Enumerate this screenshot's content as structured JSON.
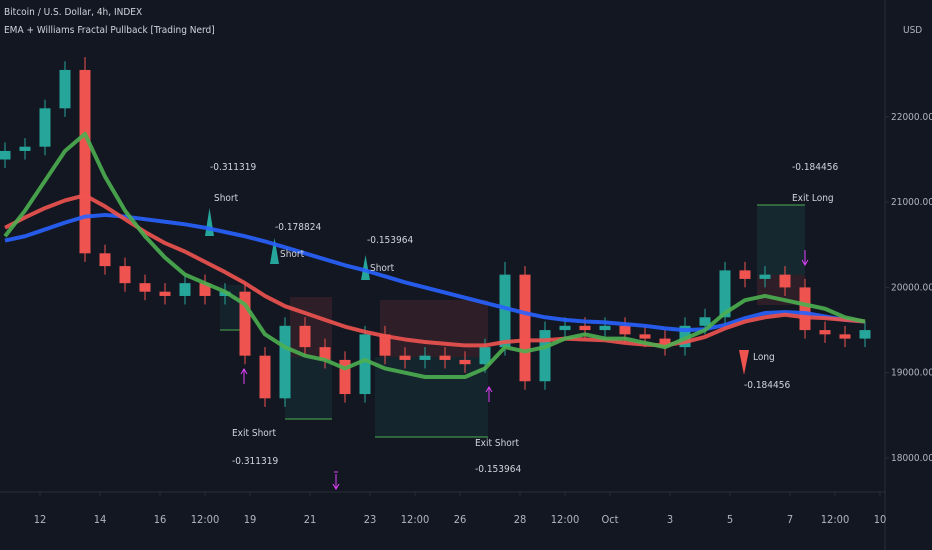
{
  "chart_data": {
    "type": "candlestick",
    "title": "Bitcoin / U.S. Dollar, 4h, INDEX",
    "subtitle": "EMA + Williams Fractal Pullback [Trading Nerd]",
    "y_axis_label": "USD",
    "x": [
      1,
      5,
      9,
      13,
      17,
      21,
      25,
      29,
      33,
      37,
      41,
      45,
      49,
      53,
      57,
      61,
      65,
      69,
      73,
      77,
      81,
      85,
      89,
      93,
      97,
      101,
      105,
      109,
      113,
      117,
      121,
      125,
      129,
      133,
      137,
      141,
      145,
      149,
      153,
      157,
      161,
      165,
      169,
      173
    ],
    "open": [
      21500,
      21600,
      21650,
      22100,
      22550,
      20400,
      20250,
      20050,
      19950,
      19900,
      20050,
      19900,
      19950,
      19200,
      18700,
      19550,
      19300,
      19150,
      18750,
      19450,
      19200,
      19150,
      19200,
      19150,
      19100,
      19300,
      20150,
      18900,
      19500,
      19550,
      19500,
      19550,
      19450,
      19400,
      19300,
      19550,
      19650,
      20200,
      20100,
      20150,
      20000,
      19500,
      19450,
      19400
    ],
    "high": [
      21700,
      21750,
      22200,
      22650,
      22700,
      20500,
      20350,
      20150,
      20050,
      20150,
      20150,
      20050,
      20050,
      19300,
      19650,
      19650,
      19400,
      19250,
      19550,
      19550,
      19300,
      19300,
      19300,
      19250,
      19400,
      20300,
      20250,
      19600,
      19650,
      19650,
      19650,
      19650,
      19550,
      19500,
      19650,
      19750,
      20300,
      20300,
      20250,
      20250,
      20100,
      19600,
      19550,
      19600
    ],
    "low": [
      21400,
      21500,
      21550,
      22000,
      20300,
      20150,
      19950,
      19850,
      19800,
      19800,
      19800,
      19800,
      19100,
      18600,
      18600,
      19200,
      19050,
      18650,
      18650,
      19100,
      19050,
      19050,
      19050,
      19000,
      19000,
      19200,
      18800,
      18800,
      19400,
      19400,
      19400,
      19350,
      19300,
      19200,
      19200,
      19450,
      19550,
      20000,
      20000,
      19900,
      19400,
      19350,
      19300,
      19300
    ],
    "close": [
      21600,
      21650,
      22100,
      22550,
      20400,
      20250,
      20050,
      19950,
      19900,
      20050,
      19900,
      19950,
      19200,
      18700,
      19550,
      19300,
      19150,
      18750,
      19450,
      19200,
      19150,
      19200,
      19150,
      19100,
      19300,
      20150,
      18900,
      19500,
      19550,
      19500,
      19550,
      19450,
      19400,
      19300,
      19550,
      19650,
      20200,
      20100,
      20150,
      20000,
      19500,
      19450,
      19400,
      19500
    ],
    "up_color": "#26a69a",
    "down_color": "#ef5350",
    "series": [
      {
        "color": "#2962ff",
        "values": [
          20550,
          20600,
          20680,
          20760,
          20830,
          20850,
          20830,
          20800,
          20770,
          20740,
          20700,
          20650,
          20600,
          20540,
          20470,
          20400,
          20330,
          20260,
          20200,
          20130,
          20060,
          20000,
          19940,
          19880,
          19820,
          19760,
          19700,
          19650,
          19620,
          19600,
          19590,
          19570,
          19550,
          19520,
          19500,
          19510,
          19560,
          19640,
          19700,
          19710,
          19700,
          19660,
          19620,
          19600
        ]
      },
      {
        "color": "#f05350",
        "values": [
          20700,
          20820,
          20930,
          21020,
          21080,
          20950,
          20800,
          20650,
          20520,
          20420,
          20300,
          20180,
          20050,
          19900,
          19780,
          19700,
          19620,
          19540,
          19480,
          19430,
          19390,
          19360,
          19340,
          19320,
          19320,
          19360,
          19380,
          19380,
          19400,
          19390,
          19380,
          19350,
          19330,
          19320,
          19360,
          19420,
          19520,
          19600,
          19650,
          19680,
          19650,
          19640,
          19620,
          19600
        ]
      },
      {
        "color": "#4caf50",
        "values": [
          20600,
          20900,
          21250,
          21600,
          21800,
          21300,
          20900,
          20600,
          20350,
          20150,
          20050,
          19950,
          19800,
          19450,
          19300,
          19200,
          19150,
          19050,
          19150,
          19050,
          19000,
          18950,
          18950,
          18950,
          19050,
          19300,
          19250,
          19300,
          19400,
          19450,
          19400,
          19400,
          19350,
          19300,
          19400,
          19500,
          19700,
          19850,
          19900,
          19850,
          19800,
          19750,
          19650,
          19600
        ]
      }
    ],
    "xlim": [
      0,
      177
    ],
    "xticks": [
      {
        "value": 8,
        "label": "12"
      },
      {
        "value": 20,
        "label": "14"
      },
      {
        "value": 32,
        "label": "16"
      },
      {
        "value": 41,
        "label": "12:00"
      },
      {
        "value": 50,
        "label": "19"
      },
      {
        "value": 62,
        "label": "21"
      },
      {
        "value": 74,
        "label": "23"
      },
      {
        "value": 83,
        "label": "12:00"
      },
      {
        "value": 92,
        "label": "26"
      },
      {
        "value": 104,
        "label": "28"
      },
      {
        "value": 113,
        "label": "12:00"
      },
      {
        "value": 122,
        "label": "Oct"
      },
      {
        "value": 134,
        "label": "3"
      },
      {
        "value": 146,
        "label": "5"
      },
      {
        "value": 158,
        "label": "7"
      },
      {
        "value": 167,
        "label": "12:00"
      },
      {
        "value": 176,
        "label": "10"
      }
    ],
    "ylim": [
      17625,
      23370
    ],
    "yticks": [
      {
        "value": 18000,
        "label": "18000.00"
      },
      {
        "value": 19000,
        "label": "19000.00"
      },
      {
        "value": 20000,
        "label": "20000.00"
      },
      {
        "value": 21000,
        "label": "21000.00"
      },
      {
        "value": 22000,
        "label": "22000.00"
      }
    ],
    "annotations": [
      "-0.311319",
      "Short",
      "-0.178824",
      "Short",
      "-0.153964",
      "Short",
      "Exit Short",
      "-0.311319",
      "Exit Short",
      "-0.153964",
      "-0.184456",
      "Exit Long",
      "Long",
      "-0.184456"
    ]
  }
}
